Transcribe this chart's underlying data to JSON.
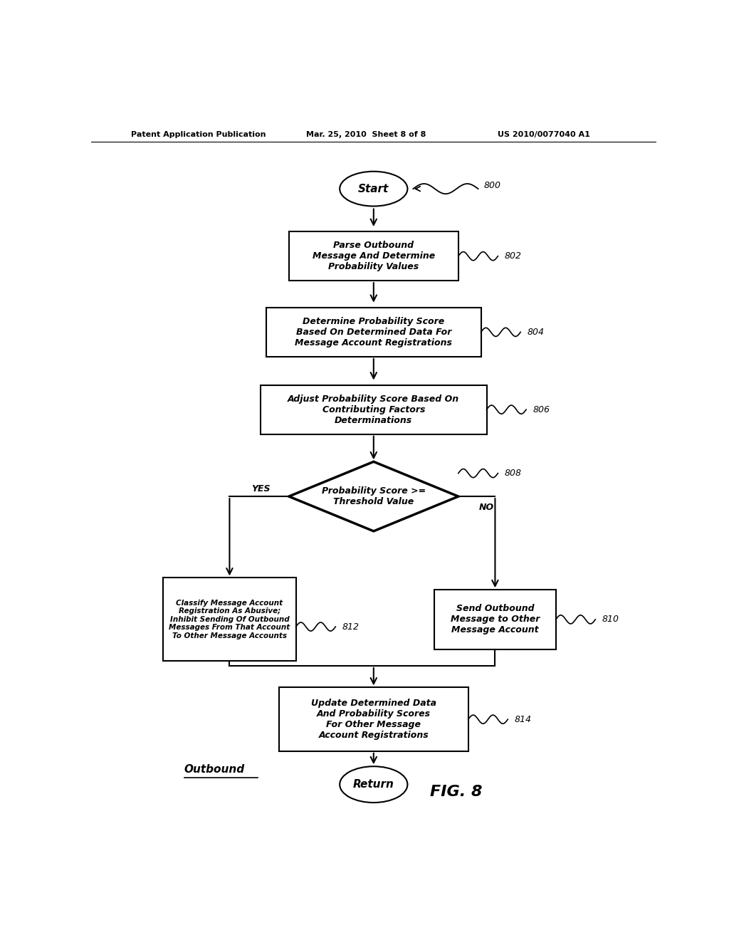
{
  "bg_color": "#ffffff",
  "header_left": "Patent Application Publication",
  "header_center": "Mar. 25, 2010  Sheet 8 of 8",
  "header_right": "US 2010/0077040 A1",
  "fig_label": "FIG. 8",
  "outbound_label": "Outbound"
}
